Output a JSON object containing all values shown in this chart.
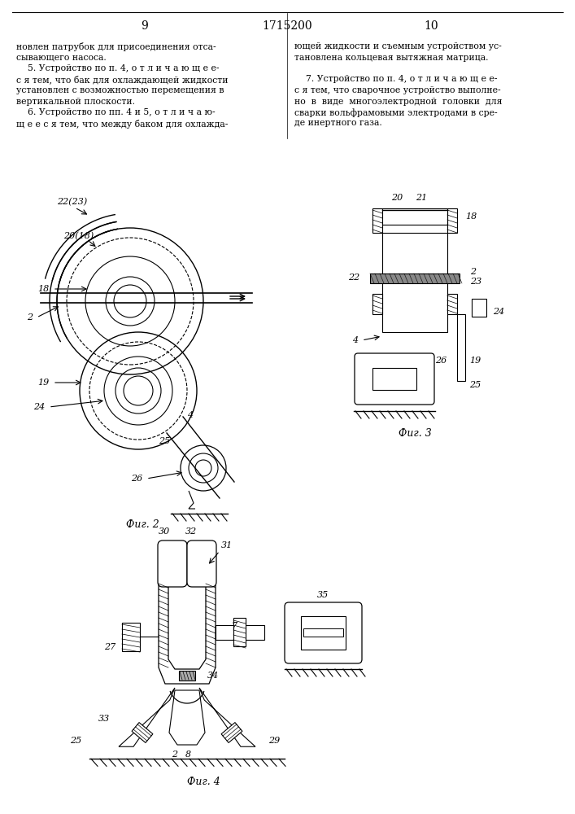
{
  "page_num_left": "9",
  "page_num_center": "1715200",
  "page_num_right": "10",
  "left_column_text": [
    "новлен патрубок для присоединения отса-",
    "сывающего насоса.",
    "    5. Устройство по п. 4, о т л и ч а ю щ е е-",
    "с я тем, что бак для охлаждающей жидкости",
    "установлен с возможностью перемещения в",
    "вертикальной плоскости.",
    "    6. Устройство по пп. 4 и 5, о т л и ч а ю-",
    "щ е е с я тем, что между баком для охлажда-"
  ],
  "right_column_text": [
    "ющей жидкости и съемным устройством ус-",
    "тановлена кольцевая вытяжная матрица.",
    "",
    "    7. Устройство по п. 4, о т л и ч а ю щ е е-",
    "с я тем, что сварочное устройство выполне-",
    "но  в  виде  многоэлектродной  головки  для",
    "сварки вольфрамовыми электродами в сре-",
    "де инертного газа."
  ],
  "fig2_label": "Фиг. 2",
  "fig3_label": "Фиг. 3",
  "fig4_label": "Фиг. 4",
  "background_color": "#ffffff",
  "text_color": "#000000",
  "line_color": "#000000",
  "font_size_text": 7.8,
  "font_size_page": 10,
  "font_size_fig": 9,
  "font_size_label": 8
}
